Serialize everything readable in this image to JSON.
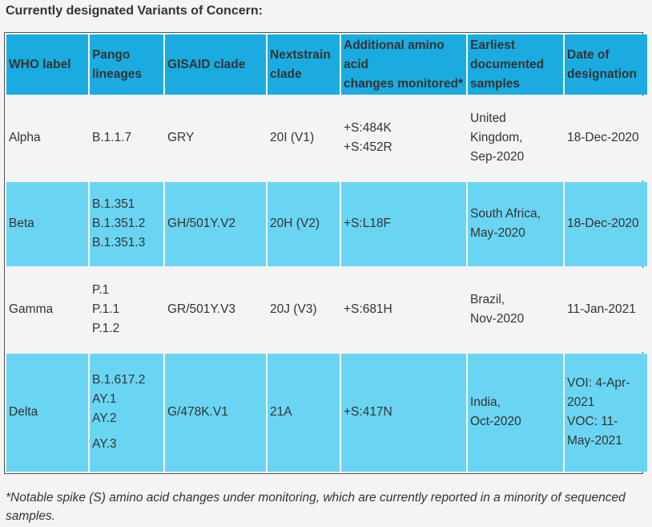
{
  "title": "Currently designated Variants of Concern:",
  "table": {
    "headers": {
      "who": "WHO label",
      "pango_1": "Pango",
      "pango_2": "lineages",
      "gisaid": "GISAID clade",
      "next_1": "Nextstrain",
      "next_2": "clade",
      "amino_1": "Additional amino",
      "amino_2": "acid",
      "amino_3": "changes monitored*",
      "earliest_1": "Earliest",
      "earliest_2": "documented",
      "earliest_3": "samples",
      "date_1": "Date of",
      "date_2": "designation"
    },
    "rows": [
      {
        "who": "Alpha",
        "pango": [
          "B.1.1.7"
        ],
        "gisaid": "GRY",
        "nextstrain": "20I (V1)",
        "amino": [
          "+S:484K",
          "+S:452R"
        ],
        "earliest": [
          "United",
          "Kingdom,",
          "Sep-2020"
        ],
        "date": [
          "18-Dec-2020"
        ]
      },
      {
        "who": "Beta",
        "pango": [
          "B.1.351",
          "B.1.351.2",
          "B.1.351.3"
        ],
        "gisaid": "GH/501Y.V2",
        "nextstrain": "20H (V2)",
        "amino": [
          "+S:L18F"
        ],
        "earliest": [
          "South Africa,",
          "May-2020"
        ],
        "date": [
          "18-Dec-2020"
        ]
      },
      {
        "who": "Gamma",
        "pango": [
          "P.1",
          "P.1.1",
          "P.1.2"
        ],
        "gisaid": "GR/501Y.V3",
        "nextstrain": "20J (V3)",
        "amino": [
          "+S:681H"
        ],
        "earliest": [
          "Brazil,",
          "Nov-2020"
        ],
        "date": [
          "11-Jan-2021"
        ]
      },
      {
        "who": "Delta",
        "pango": [
          "B.1.617.2",
          "AY.1",
          "AY.2",
          "AY.3"
        ],
        "gisaid": "G/478K.V1",
        "nextstrain": "21A",
        "amino": [
          "+S:417N"
        ],
        "earliest": [
          "India,",
          "Oct-2020"
        ],
        "date": [
          "VOI: 4-Apr-",
          "2021",
          "VOC: 11-",
          "May-2021"
        ]
      }
    ]
  },
  "footnote": "*Notable spike (S) amino acid changes under monitoring, which are currently reported in a minority of sequenced samples.",
  "colors": {
    "header_bg": "#1aace0",
    "row_blue": "#6ad5f3",
    "row_light": "#f4f4f4"
  }
}
